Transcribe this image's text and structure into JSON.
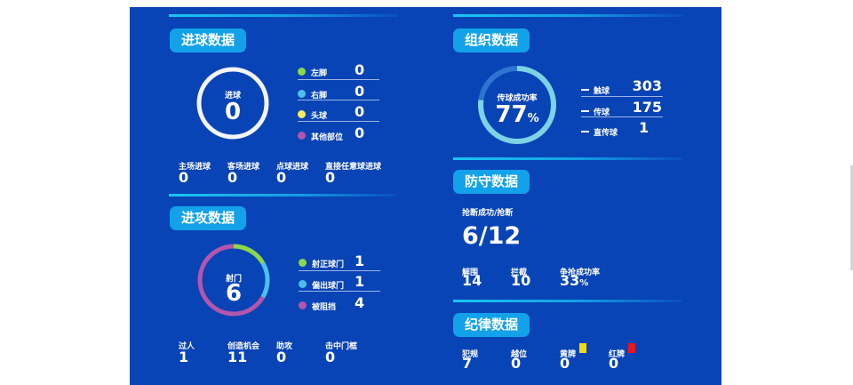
{
  "goals": {
    "title": "进球数据",
    "ring_label": "进球",
    "total": "0",
    "breakdown": [
      {
        "label": "左脚",
        "value": "0",
        "color": "#8bd84a"
      },
      {
        "label": "右脚",
        "value": "0",
        "color": "#4cbff0"
      },
      {
        "label": "头球",
        "value": "0",
        "color": "#f4ec5a"
      },
      {
        "label": "其他部位",
        "value": "0",
        "color": "#b456ac"
      }
    ],
    "stats": [
      {
        "label": "主场进球",
        "value": "0"
      },
      {
        "label": "客场进球",
        "value": "0"
      },
      {
        "label": "点球进球",
        "value": "0"
      },
      {
        "label": "直接任意球进球",
        "value": "0"
      }
    ]
  },
  "attack": {
    "title": "进攻数据",
    "ring_label": "射门",
    "total": "6",
    "breakdown": [
      {
        "label": "射正球门",
        "value": "1",
        "color": "#8bd84a"
      },
      {
        "label": "偏出球门",
        "value": "1",
        "color": "#4cbff0"
      },
      {
        "label": "被阻挡",
        "value": "4",
        "color": "#b456ac"
      }
    ],
    "stats": [
      {
        "label": "过人",
        "value": "1"
      },
      {
        "label": "创造机会",
        "value": "11"
      },
      {
        "label": "助攻",
        "value": "0"
      },
      {
        "label": "击中门框",
        "value": "0"
      }
    ]
  },
  "organization": {
    "title": "组织数据",
    "ring_label": "传球成功率",
    "rate_value": "77",
    "rate_unit": "%",
    "rate_fraction": 0.77,
    "stats": [
      {
        "label": "触球",
        "value": "303"
      },
      {
        "label": "传球",
        "value": "175"
      },
      {
        "label": "直传球",
        "value": "1"
      }
    ]
  },
  "defense": {
    "title": "防守数据",
    "tackle_label": "抢断成功/抢断",
    "tackle_value": "6/12",
    "stats": [
      {
        "label": "解围",
        "value": "14"
      },
      {
        "label": "拦截",
        "value": "10"
      },
      {
        "label": "争抢成功率",
        "value": "33",
        "unit": "%"
      }
    ]
  },
  "discipline": {
    "title": "纪律数据",
    "stats": [
      {
        "label": "犯规",
        "value": "7"
      },
      {
        "label": "越位",
        "value": "0"
      },
      {
        "label": "黄牌",
        "value": "0",
        "card_color": "#f5d90a"
      },
      {
        "label": "红牌",
        "value": "0",
        "card_color": "#e8161d"
      }
    ]
  }
}
